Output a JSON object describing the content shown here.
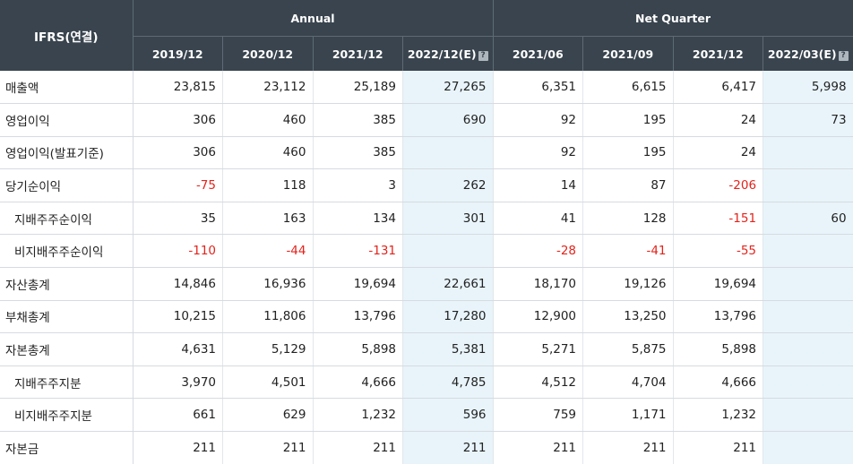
{
  "header": {
    "corner_label": "IFRS(연결)",
    "group_annual": "Annual",
    "group_quarter": "Net Quarter",
    "periods": [
      {
        "label": "2019/12",
        "estimate": false
      },
      {
        "label": "2020/12",
        "estimate": false
      },
      {
        "label": "2021/12",
        "estimate": false
      },
      {
        "label": "2022/12(E)",
        "estimate": true
      },
      {
        "label": "2021/06",
        "estimate": false
      },
      {
        "label": "2021/09",
        "estimate": false
      },
      {
        "label": "2021/12",
        "estimate": false
      },
      {
        "label": "2022/03(E)",
        "estimate": true
      }
    ],
    "estimate_icon": "info-icon",
    "estimate_icon_glyph": "?"
  },
  "colors": {
    "header_bg": "#39444e",
    "estimate_bg": "#e8f4fa",
    "negative": "#e3231b"
  },
  "rows": [
    {
      "label": "매출액",
      "sub": false,
      "values": [
        "23,815",
        "23,112",
        "25,189",
        "27,265",
        "6,351",
        "6,615",
        "6,417",
        "5,998"
      ]
    },
    {
      "label": "영업이익",
      "sub": false,
      "values": [
        "306",
        "460",
        "385",
        "690",
        "92",
        "195",
        "24",
        "73"
      ]
    },
    {
      "label": "영업이익(발표기준)",
      "sub": false,
      "values": [
        "306",
        "460",
        "385",
        "",
        "92",
        "195",
        "24",
        ""
      ]
    },
    {
      "label": "당기순이익",
      "sub": false,
      "values": [
        "-75",
        "118",
        "3",
        "262",
        "14",
        "87",
        "-206",
        ""
      ]
    },
    {
      "label": "지배주주순이익",
      "sub": true,
      "values": [
        "35",
        "163",
        "134",
        "301",
        "41",
        "128",
        "-151",
        "60"
      ]
    },
    {
      "label": "비지배주주순이익",
      "sub": true,
      "values": [
        "-110",
        "-44",
        "-131",
        "",
        "-28",
        "-41",
        "-55",
        ""
      ]
    },
    {
      "label": "자산총계",
      "sub": false,
      "values": [
        "14,846",
        "16,936",
        "19,694",
        "22,661",
        "18,170",
        "19,126",
        "19,694",
        ""
      ]
    },
    {
      "label": "부채총계",
      "sub": false,
      "values": [
        "10,215",
        "11,806",
        "13,796",
        "17,280",
        "12,900",
        "13,250",
        "13,796",
        ""
      ]
    },
    {
      "label": "자본총계",
      "sub": false,
      "values": [
        "4,631",
        "5,129",
        "5,898",
        "5,381",
        "5,271",
        "5,875",
        "5,898",
        ""
      ]
    },
    {
      "label": "지배주주지분",
      "sub": true,
      "values": [
        "3,970",
        "4,501",
        "4,666",
        "4,785",
        "4,512",
        "4,704",
        "4,666",
        ""
      ]
    },
    {
      "label": "비지배주주지분",
      "sub": true,
      "values": [
        "661",
        "629",
        "1,232",
        "596",
        "759",
        "1,171",
        "1,232",
        ""
      ]
    },
    {
      "label": "자본금",
      "sub": false,
      "values": [
        "211",
        "211",
        "211",
        "211",
        "211",
        "211",
        "211",
        ""
      ]
    }
  ]
}
